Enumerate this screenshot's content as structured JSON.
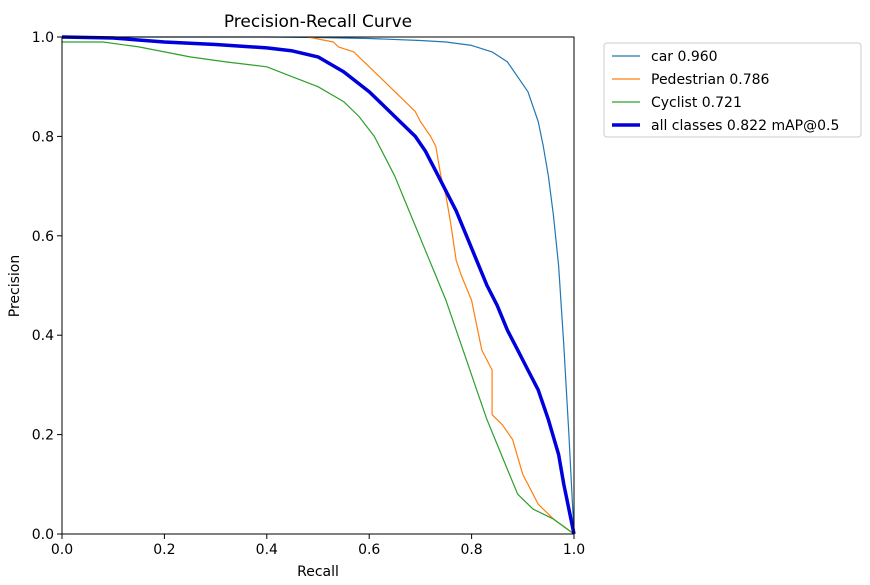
{
  "chart_data": {
    "type": "line",
    "title": "Precision-Recall Curve",
    "xlabel": "Recall",
    "ylabel": "Precision",
    "xlim": [
      0.0,
      1.0
    ],
    "ylim": [
      0.0,
      1.0
    ],
    "xticks": [
      "0.0",
      "0.2",
      "0.4",
      "0.6",
      "0.8",
      "1.0"
    ],
    "yticks": [
      "0.0",
      "0.2",
      "0.4",
      "0.6",
      "0.8",
      "1.0"
    ],
    "grid": false,
    "legend_position": "outside-upper-right",
    "series": [
      {
        "name": "car 0.960",
        "color": "#1f77b4",
        "width": "thin",
        "x": [
          0.0,
          0.1,
          0.2,
          0.3,
          0.4,
          0.5,
          0.6,
          0.7,
          0.75,
          0.8,
          0.84,
          0.87,
          0.89,
          0.91,
          0.93,
          0.94,
          0.95,
          0.96,
          0.97,
          0.98,
          0.99,
          1.0
        ],
        "y": [
          1.0,
          1.0,
          1.0,
          1.0,
          1.0,
          0.999,
          0.997,
          0.993,
          0.99,
          0.983,
          0.97,
          0.95,
          0.92,
          0.89,
          0.83,
          0.78,
          0.72,
          0.64,
          0.54,
          0.38,
          0.2,
          0.0
        ]
      },
      {
        "name": "Pedestrian 0.786",
        "color": "#ff7f0e",
        "width": "thin",
        "x": [
          0.48,
          0.53,
          0.54,
          0.57,
          0.6,
          0.63,
          0.66,
          0.69,
          0.7,
          0.72,
          0.73,
          0.74,
          0.75,
          0.76,
          0.77,
          0.78,
          0.8,
          0.81,
          0.82,
          0.84,
          0.84,
          0.86,
          0.88,
          0.9,
          0.93,
          0.96,
          1.0
        ],
        "y": [
          1.0,
          0.99,
          0.98,
          0.97,
          0.94,
          0.91,
          0.88,
          0.85,
          0.83,
          0.8,
          0.78,
          0.72,
          0.68,
          0.62,
          0.55,
          0.52,
          0.47,
          0.42,
          0.37,
          0.33,
          0.24,
          0.22,
          0.19,
          0.12,
          0.06,
          0.03,
          0.0
        ]
      },
      {
        "name": "Cyclist 0.721",
        "color": "#2ca02c",
        "width": "thin",
        "x": [
          0.0,
          0.08,
          0.15,
          0.25,
          0.32,
          0.4,
          0.45,
          0.5,
          0.55,
          0.58,
          0.61,
          0.63,
          0.65,
          0.67,
          0.69,
          0.71,
          0.73,
          0.75,
          0.77,
          0.79,
          0.81,
          0.83,
          0.85,
          0.87,
          0.89,
          0.92,
          0.96,
          1.0
        ],
        "y": [
          0.99,
          0.99,
          0.98,
          0.96,
          0.95,
          0.94,
          0.92,
          0.9,
          0.87,
          0.84,
          0.8,
          0.76,
          0.72,
          0.67,
          0.62,
          0.57,
          0.52,
          0.47,
          0.41,
          0.35,
          0.29,
          0.23,
          0.18,
          0.13,
          0.08,
          0.05,
          0.03,
          0.0
        ]
      },
      {
        "name": "all classes 0.822 mAP@0.5",
        "color": "#0000dd",
        "width": "thick",
        "x": [
          0.0,
          0.1,
          0.2,
          0.3,
          0.4,
          0.45,
          0.5,
          0.55,
          0.6,
          0.63,
          0.66,
          0.69,
          0.71,
          0.73,
          0.75,
          0.77,
          0.79,
          0.81,
          0.83,
          0.85,
          0.87,
          0.89,
          0.91,
          0.93,
          0.95,
          0.97,
          0.98,
          0.99,
          1.0
        ],
        "y": [
          1.0,
          0.998,
          0.99,
          0.985,
          0.978,
          0.972,
          0.96,
          0.93,
          0.89,
          0.86,
          0.83,
          0.8,
          0.77,
          0.73,
          0.69,
          0.65,
          0.6,
          0.55,
          0.5,
          0.46,
          0.41,
          0.37,
          0.33,
          0.29,
          0.23,
          0.16,
          0.1,
          0.05,
          0.0
        ]
      }
    ]
  }
}
